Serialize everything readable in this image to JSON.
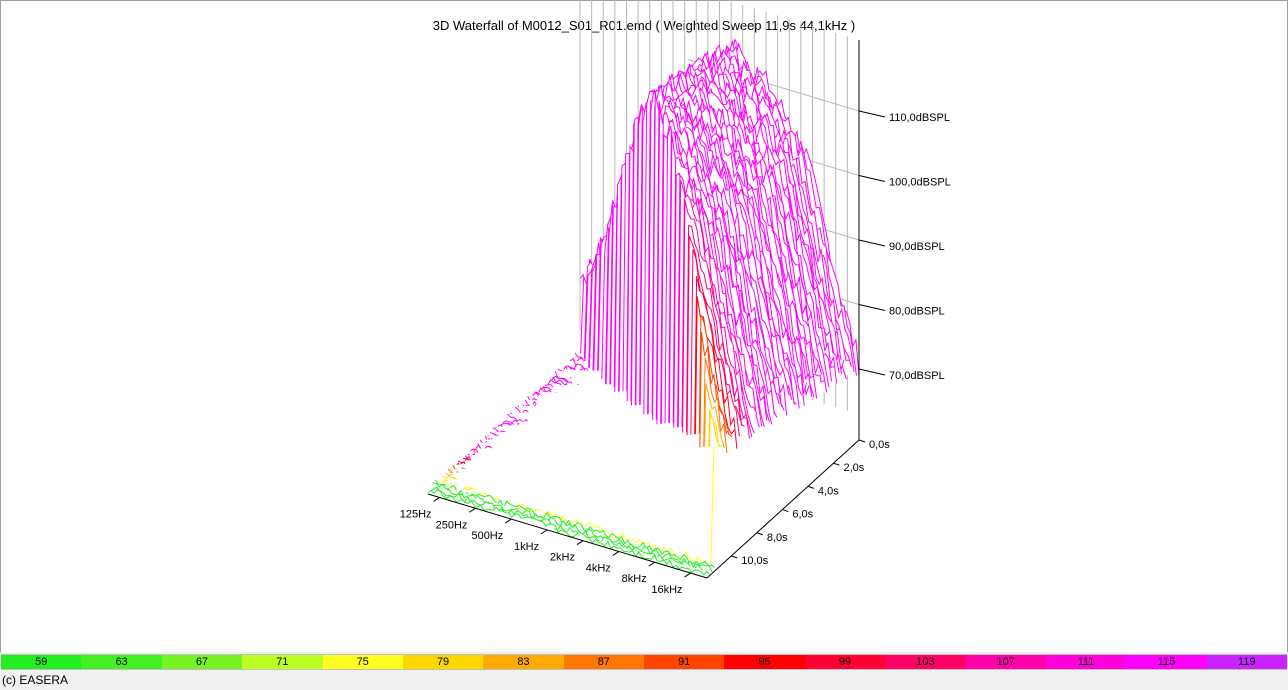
{
  "title": "3D Waterfall of M0012_S01_R01.emd ( Weighted Sweep 11,9s 44,1kHz )",
  "footer": "(c) EASERA",
  "chart_data": {
    "type": "waterfall",
    "title": "3D Waterfall of M0012_S01_R01.emd ( Weighted Sweep 11,9s 44,1kHz )",
    "frequency_ticks": [
      "125Hz",
      "250Hz",
      "500Hz",
      "1kHz",
      "2kHz",
      "4kHz",
      "8kHz",
      "16kHz"
    ],
    "frequency_range_hz": [
      100,
      22000
    ],
    "time_ticks": [
      "0,0s",
      "2,0s",
      "4,0s",
      "6,0s",
      "8,0s",
      "10,0s"
    ],
    "time_range_s": [
      0,
      11.9
    ],
    "level_ticks": [
      "70,0dBSPL",
      "80,0dBSPL",
      "90,0dBSPL",
      "100,0dBSPL",
      "110,0dBSPL"
    ],
    "level_range_db": [
      59,
      121
    ],
    "color_scale": {
      "values": [
        "59",
        "63",
        "67",
        "71",
        "75",
        "79",
        "83",
        "87",
        "91",
        "95",
        "99",
        "103",
        "107",
        "111",
        "115",
        "119"
      ],
      "colors": [
        "#22ee22",
        "#44f022",
        "#77f222",
        "#bbff22",
        "#ffff22",
        "#ffd700",
        "#ffaa00",
        "#ff7700",
        "#ff4400",
        "#ff0000",
        "#ff0033",
        "#ff0066",
        "#ff00aa",
        "#ff00dd",
        "#ff00ff",
        "#cc22ff"
      ]
    },
    "approx_sweep_peak_profile": {
      "frequency_hz": [
        125,
        250,
        500,
        1000,
        2000,
        4000,
        8000,
        16000
      ],
      "level_db": [
        73,
        82,
        96,
        110,
        118,
        114,
        106,
        86
      ]
    }
  }
}
